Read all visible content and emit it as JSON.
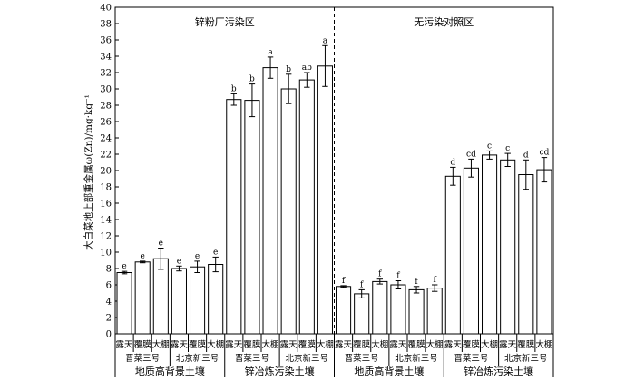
{
  "chart_data": {
    "type": "bar",
    "ylabel": "大白菜地上部重金属ω(Zn)/mg·kg⁻¹",
    "ylim": [
      0,
      40
    ],
    "yticks": [
      0,
      2,
      4,
      6,
      8,
      10,
      12,
      14,
      16,
      18,
      20,
      22,
      24,
      26,
      28,
      30,
      32,
      34,
      36,
      38,
      40
    ],
    "regions": [
      "锌粉厂污染区",
      "无污染对照区"
    ],
    "soils": [
      "地质高背景土壤",
      "锌冶炼污染土壤"
    ],
    "varieties": [
      "晋菜三号",
      "北京新三号"
    ],
    "treatments": [
      "露天",
      "覆膜",
      "大棚"
    ],
    "series": [
      {
        "region": 0,
        "soil": 0,
        "values": [
          7.5,
          8.8,
          9.2,
          8.0,
          8.2,
          8.5
        ],
        "errors": [
          0.15,
          0.1,
          1.3,
          0.3,
          0.7,
          0.9
        ],
        "sig": [
          "e",
          "e",
          "e",
          "e",
          "e",
          "e"
        ]
      },
      {
        "region": 0,
        "soil": 1,
        "values": [
          28.7,
          28.6,
          32.6,
          30.0,
          31.1,
          32.8
        ],
        "errors": [
          0.7,
          2.0,
          1.3,
          1.8,
          0.9,
          2.5
        ],
        "sig": [
          "b",
          "b",
          "a",
          "b",
          "ab",
          "a"
        ]
      },
      {
        "region": 1,
        "soil": 0,
        "values": [
          5.8,
          4.9,
          6.4,
          6.0,
          5.4,
          5.6
        ],
        "errors": [
          0.1,
          0.5,
          0.3,
          0.5,
          0.4,
          0.4
        ],
        "sig": [
          "f",
          "f",
          "f",
          "f",
          "f",
          "f"
        ]
      },
      {
        "region": 1,
        "soil": 1,
        "values": [
          19.3,
          20.3,
          21.9,
          21.3,
          19.5,
          20.1
        ],
        "errors": [
          1.1,
          1.1,
          0.5,
          0.8,
          1.8,
          1.5
        ],
        "sig": [
          "d",
          "cd",
          "c",
          "c",
          "d",
          "cd"
        ]
      }
    ]
  }
}
